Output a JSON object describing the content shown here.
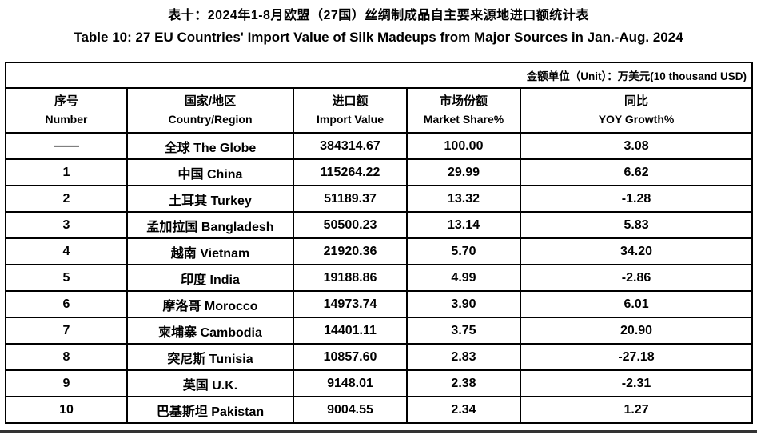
{
  "page": {
    "title_zh": "表十：2024年1-8月欧盟（27国）丝绸制成品自主要来源地进口额统计表",
    "title_en": "Table 10: 27 EU Countries' Import Value of Silk Madeups from Major Sources in Jan.-Aug. 2024"
  },
  "table": {
    "unit_note": "金额单位（Unit）：万美元(10 thousand USD)",
    "columns": [
      {
        "zh": "序号",
        "en": "Number"
      },
      {
        "zh": "国家/地区",
        "en": "Country/Region"
      },
      {
        "zh": "进口额",
        "en": "Import Value"
      },
      {
        "zh": "市场份额",
        "en": "Market Share%"
      },
      {
        "zh": "同比",
        "en": "YOY Growth%"
      }
    ],
    "rows": [
      {
        "number": "——",
        "country": "全球 The Globe",
        "import_value": "384314.67",
        "market_share": "100.00",
        "yoy_growth": "3.08"
      },
      {
        "number": "1",
        "country": "中国 China",
        "import_value": "115264.22",
        "market_share": "29.99",
        "yoy_growth": "6.62"
      },
      {
        "number": "2",
        "country": "土耳其 Turkey",
        "import_value": "51189.37",
        "market_share": "13.32",
        "yoy_growth": "-1.28"
      },
      {
        "number": "3",
        "country": "孟加拉国 Bangladesh",
        "import_value": "50500.23",
        "market_share": "13.14",
        "yoy_growth": "5.83"
      },
      {
        "number": "4",
        "country": "越南 Vietnam",
        "import_value": "21920.36",
        "market_share": "5.70",
        "yoy_growth": "34.20"
      },
      {
        "number": "5",
        "country": "印度 India",
        "import_value": "19188.86",
        "market_share": "4.99",
        "yoy_growth": "-2.86"
      },
      {
        "number": "6",
        "country": "摩洛哥 Morocco",
        "import_value": "14973.74",
        "market_share": "3.90",
        "yoy_growth": "6.01"
      },
      {
        "number": "7",
        "country": "柬埔寨 Cambodia",
        "import_value": "14401.11",
        "market_share": "3.75",
        "yoy_growth": "20.90"
      },
      {
        "number": "8",
        "country": "突尼斯 Tunisia",
        "import_value": "10857.60",
        "market_share": "2.83",
        "yoy_growth": "-27.18"
      },
      {
        "number": "9",
        "country": "英国 U.K.",
        "import_value": "9148.01",
        "market_share": "2.38",
        "yoy_growth": "-2.31"
      },
      {
        "number": "10",
        "country": "巴基斯坦 Pakistan",
        "import_value": "9004.55",
        "market_share": "2.34",
        "yoy_growth": "1.27"
      }
    ]
  },
  "colors": {
    "background": "#ffffff",
    "text": "#000000",
    "border": "#000000",
    "bottom_strip": "#333333"
  }
}
